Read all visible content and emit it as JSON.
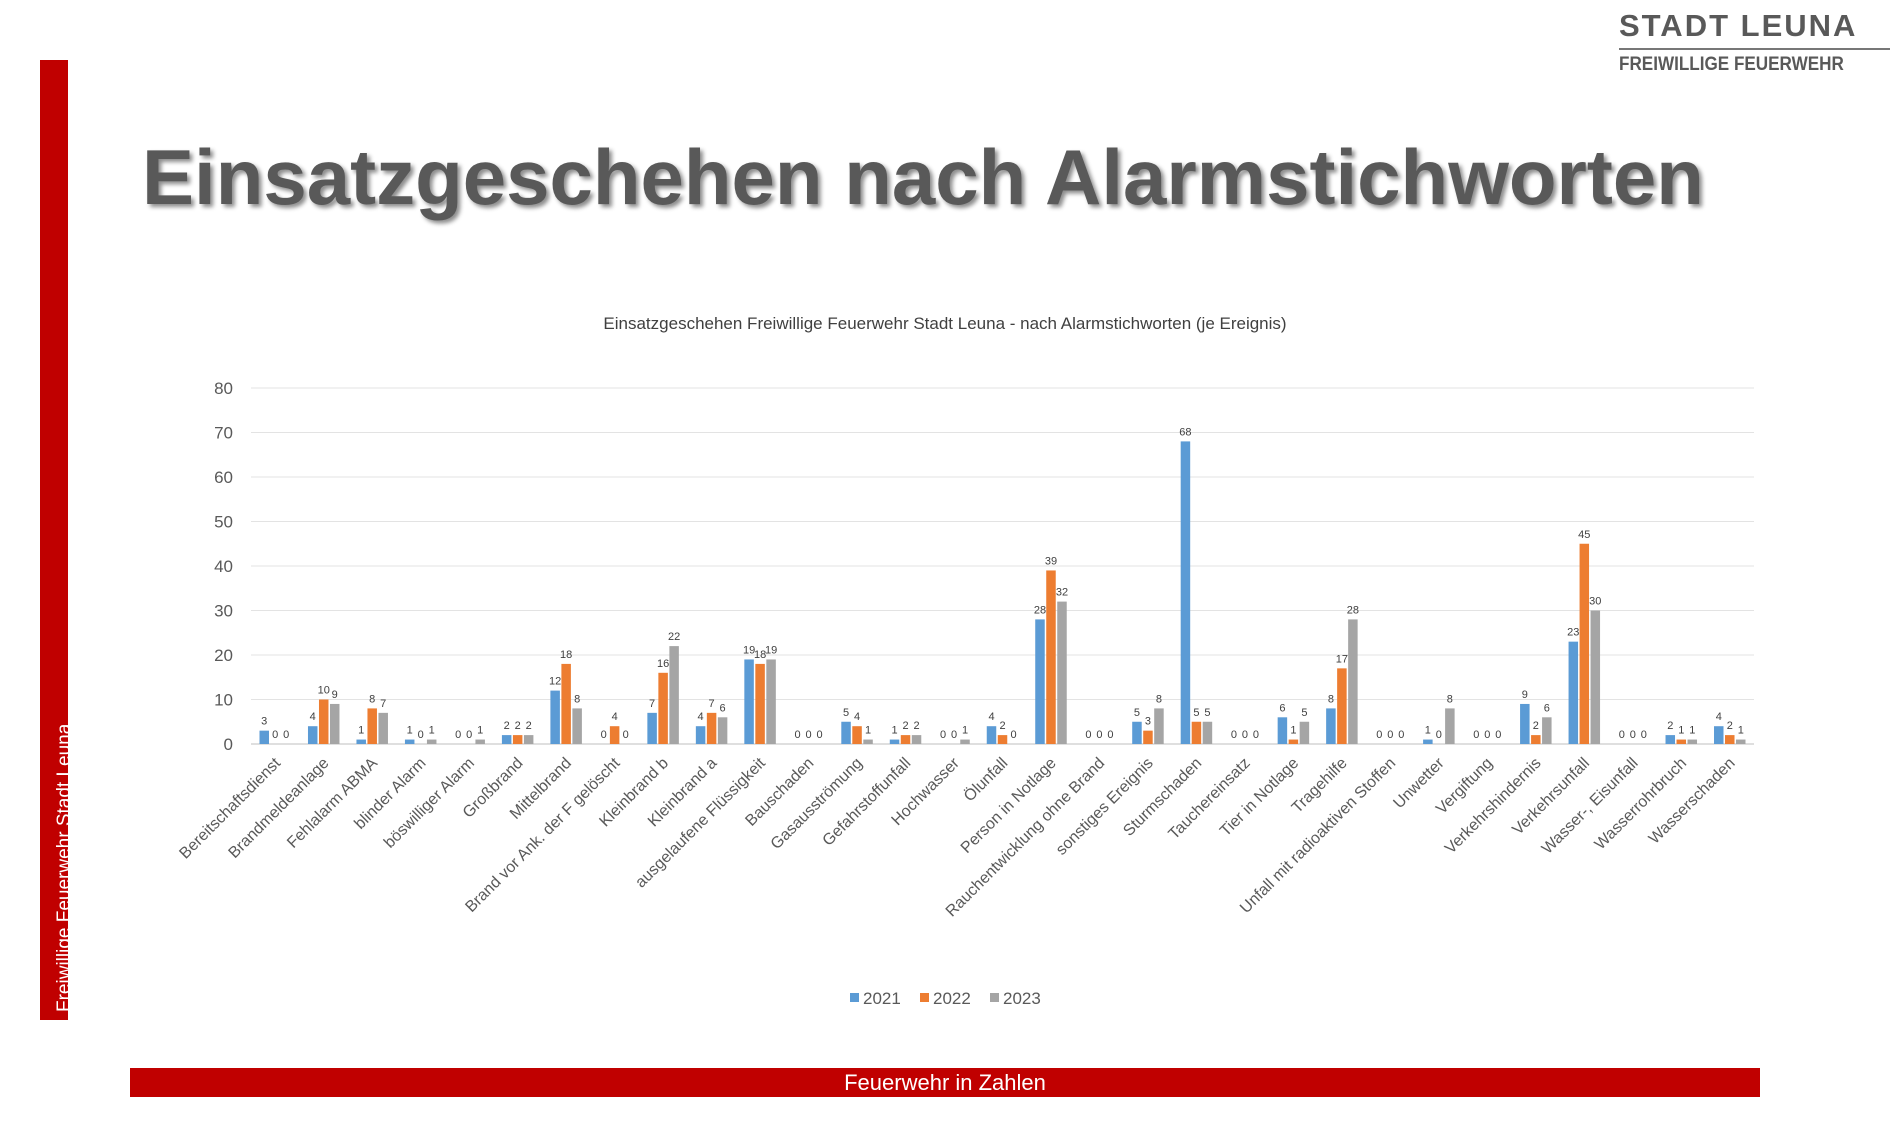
{
  "logo": {
    "main": "STADT LEUNA",
    "sub": "FREIWILLIGE FEUERWEHR"
  },
  "side_label": "Freiwillige Feuerwehr Stadt Leuna",
  "title": "Einsatzgeschehen nach Alarmstichworten",
  "footer": "Feuerwehr in Zahlen",
  "chart_data": {
    "type": "bar",
    "title": "Einsatzgeschehen Freiwillige Feuerwehr Stadt Leuna - nach Alarmstichworten (je Ereignis)",
    "xlabel": "",
    "ylabel": "",
    "ylim": [
      0,
      80
    ],
    "yticks": [
      0,
      10,
      20,
      30,
      40,
      50,
      60,
      70,
      80
    ],
    "grid": true,
    "legend_position": "bottom",
    "categories": [
      "Bereitschaftsdienst",
      "Brandmeldeanlage",
      "Fehlalarm ABMA",
      "blinder Alarm",
      "böswilliger Alarm",
      "Großbrand",
      "Mittelbrand",
      "Brand vor Ank. der F gelöscht",
      "Kleinbrand b",
      "Kleinbrand a",
      "ausgelaufene Flüssigkeit",
      "Bauschaden",
      "Gasausströmung",
      "Gefahrstoffunfall",
      "Hochwasser",
      "Ölunfall",
      "Person in Notlage",
      "Rauchentwicklung ohne Brand",
      "sonstiges Ereignis",
      "Sturmschaden",
      "Tauchereinsatz",
      "Tier in Notlage",
      "Tragehilfe",
      "Unfall mit radioaktiven Stoffen",
      "Unwetter",
      "Vergiftung",
      "Verkehrshindernis",
      "Verkehrsunfall",
      "Wasser-, Eisunfall",
      "Wasserrohrbruch",
      "Wasserschaden"
    ],
    "series": [
      {
        "name": "2021",
        "color": "#5b9bd5",
        "values": [
          3,
          4,
          1,
          1,
          0,
          2,
          12,
          0,
          7,
          4,
          19,
          0,
          5,
          1,
          0,
          4,
          28,
          0,
          5,
          68,
          0,
          6,
          8,
          0,
          1,
          0,
          9,
          23,
          0,
          2,
          4
        ]
      },
      {
        "name": "2022",
        "color": "#ed7d31",
        "values": [
          0,
          10,
          8,
          0,
          0,
          2,
          18,
          4,
          16,
          7,
          18,
          0,
          4,
          2,
          0,
          2,
          39,
          0,
          3,
          5,
          0,
          1,
          17,
          0,
          0,
          0,
          2,
          45,
          0,
          1,
          2
        ]
      },
      {
        "name": "2023",
        "color": "#a5a5a5",
        "values": [
          0,
          9,
          7,
          1,
          1,
          2,
          8,
          0,
          22,
          6,
          19,
          0,
          1,
          2,
          1,
          0,
          32,
          0,
          8,
          5,
          0,
          5,
          28,
          0,
          8,
          0,
          6,
          30,
          0,
          1,
          1
        ]
      }
    ]
  }
}
